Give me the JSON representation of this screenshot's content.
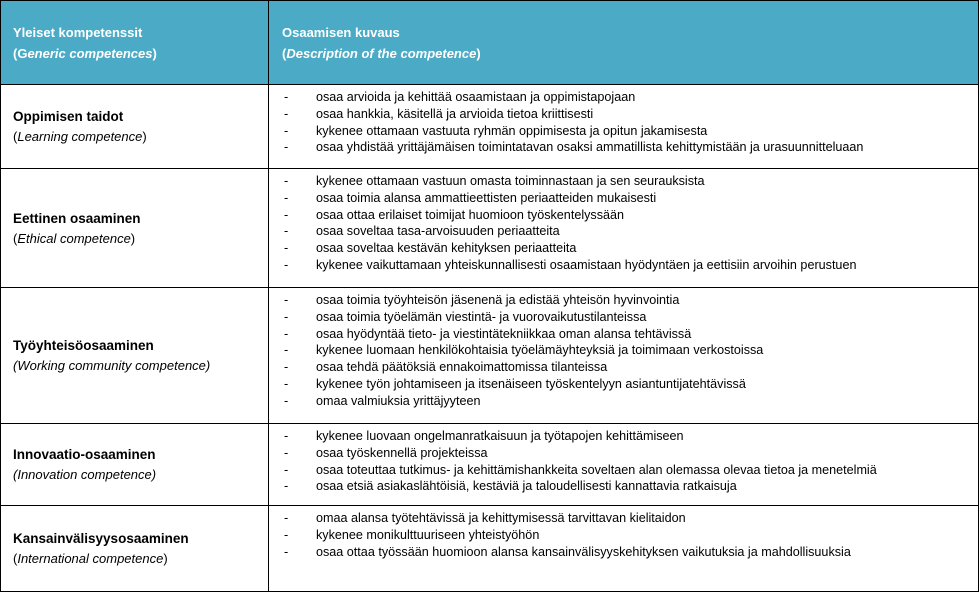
{
  "header": {
    "col1_title": "Yleiset kompetenssit",
    "col1_sub_prefix": "(G",
    "col1_sub_italic": "eneric competences",
    "col1_sub_suffix": ")",
    "col2_title": "Osaamisen kuvaus",
    "col2_sub_prefix": "(",
    "col2_sub_italic": "Description of the competence",
    "col2_sub_suffix": ")",
    "color": "#4BABC6"
  },
  "rows": [
    {
      "title": "Oppimisen taidot",
      "sub_open": "(",
      "sub_italic": "Learning competence",
      "sub_close": ")",
      "items": [
        "osaa arvioida ja kehittää osaamistaan ja oppimistapojaan",
        "osaa hankkia, käsitellä ja arvioida tietoa kriittisesti",
        "kykenee ottamaan vastuuta ryhmän oppimisesta ja opitun jakamisesta",
        "osaa yhdistää yrittäjämäisen toimintatavan osaksi ammatillista kehittymistään ja urasuunnitteluaan"
      ]
    },
    {
      "title": "Eettinen osaaminen",
      "sub_open": "(",
      "sub_italic": "Ethical competence",
      "sub_close": ")",
      "items": [
        "kykenee ottamaan vastuun omasta toiminnastaan ja sen seurauksista",
        "osaa toimia alansa ammattieettisten periaatteiden mukaisesti",
        "osaa ottaa erilaiset toimijat huomioon työskentelyssään",
        "osaa soveltaa tasa-arvoisuuden periaatteita",
        "osaa soveltaa kestävän kehityksen periaatteita",
        "kykenee vaikuttamaan yhteiskunnallisesti osaamistaan hyödyntäen ja eettisiin arvoihin perustuen"
      ]
    },
    {
      "title": "Työyhteisöosaaminen",
      "sub_open": "",
      "sub_italic": "(Working community competence)",
      "sub_close": "",
      "items": [
        "osaa toimia työyhteisön jäsenenä ja edistää yhteisön hyvinvointia",
        "osaa toimia työelämän viestintä- ja vuorovaikutustilanteissa",
        "osaa hyödyntää tieto- ja viestintätekniikkaa oman alansa tehtävissä",
        "kykenee luomaan henkilökohtaisia työelämäyhteyksiä ja toimimaan verkostoissa",
        "osaa tehdä päätöksiä ennakoimattomissa tilanteissa",
        "kykenee työn johtamiseen ja itsenäiseen työskentelyyn asiantuntijatehtävissä",
        "omaa valmiuksia yrittäjyyteen"
      ]
    },
    {
      "title": "Innovaatio-osaaminen",
      "sub_open": "",
      "sub_italic": "(Innovation competence)",
      "sub_close": "",
      "items": [
        "kykenee luovaan ongelmanratkaisuun ja työtapojen kehittämiseen",
        "osaa työskennellä projekteissa",
        "osaa toteuttaa tutkimus- ja kehittämishankkeita soveltaen alan olemassa olevaa tietoa ja menetelmiä",
        "osaa etsiä asiakaslähtöisiä, kestäviä ja taloudellisesti kannattavia ratkaisuja"
      ]
    },
    {
      "title": "Kansainvälisyysosaaminen",
      "sub_open": "(",
      "sub_italic": "International competence",
      "sub_close": ")",
      "items": [
        "omaa alansa työtehtävissä ja kehittymisessä tarvittavan kielitaidon",
        "kykenee monikulttuuriseen yhteistyöhön",
        "osaa ottaa työssään huomioon alansa kansainvälisyyskehityksen vaikutuksia ja mahdollisuuksia"
      ]
    }
  ],
  "bullet": "-"
}
